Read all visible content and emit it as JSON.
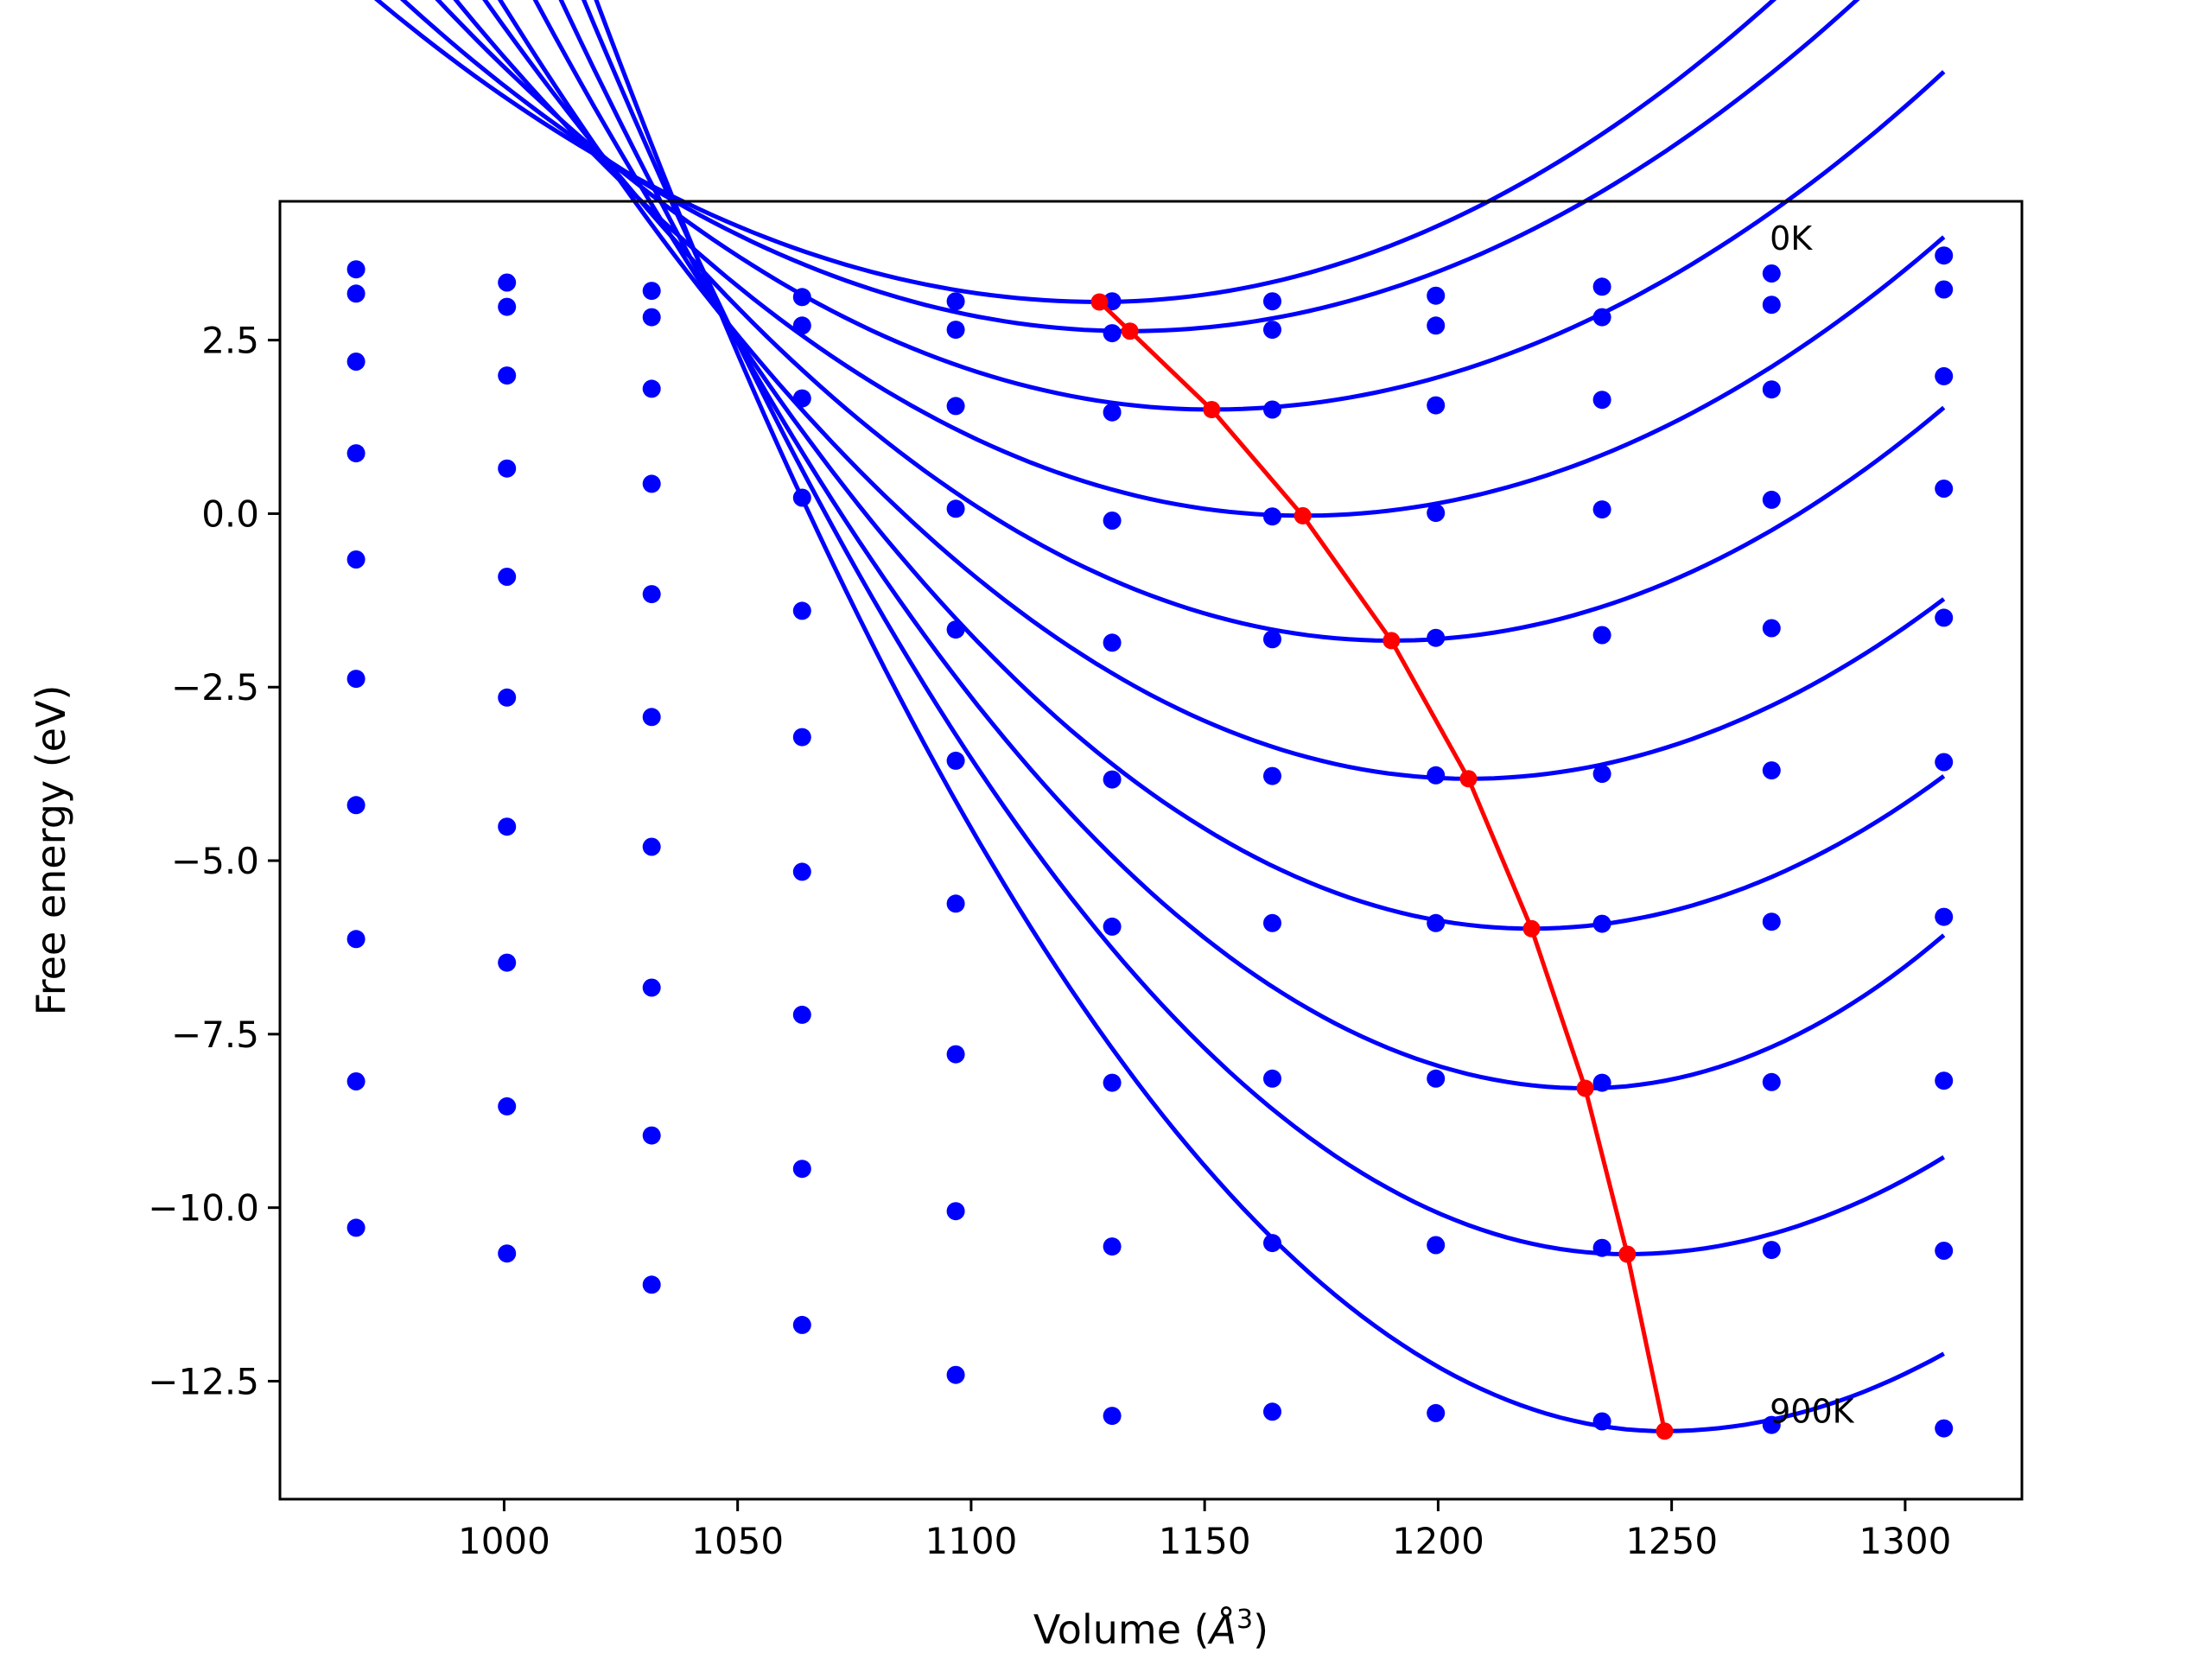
{
  "chart_data": {
    "type": "line",
    "xlabel": "Volume (",
    "xlabel_unit": "Å",
    "xlabel_exp": "3",
    "xlabel_close": ")",
    "ylabel": "Free energy (eV)",
    "xlim": [
      952,
      1325
    ],
    "ylim": [
      -14.2,
      4.5
    ],
    "grid": false,
    "xticks": [
      1000,
      1050,
      1100,
      1150,
      1200,
      1250,
      1300
    ],
    "xtick_labels": [
      "1000",
      "1050",
      "1100",
      "1150",
      "1200",
      "1250",
      "1300"
    ],
    "yticks": [
      2.5,
      0.0,
      -2.5,
      -5.0,
      -7.5,
      -10.0,
      -12.5
    ],
    "ytick_labels": [
      "2.5",
      "0.0",
      "−2.5",
      "−5.0",
      "−7.5",
      "−10.0",
      "−12.5"
    ],
    "colors": {
      "points": "#0000ff",
      "fits": "#0000ff",
      "minima": "#ff0000"
    },
    "annotations": [
      {
        "text": "0K",
        "x": 1271,
        "y": 3.8
      },
      {
        "text": "900K",
        "x": 1271,
        "y": -13.1
      }
    ],
    "x": [
      968.3,
      1000.6,
      1031.6,
      1063.8,
      1096.7,
      1130.2,
      1164.5,
      1199.5,
      1235.1,
      1271.4,
      1308.3
    ],
    "series": [
      {
        "points": [
          3.52,
          3.33,
          3.21,
          3.12,
          3.06,
          3.06,
          3.06,
          3.14,
          3.27,
          3.46,
          3.72
        ],
        "fit": {
          "v0": 1127.5,
          "e0": 3.05,
          "a_left": 1.82e-05,
          "a_right": 2.09e-05
        }
      },
      {
        "points": [
          3.17,
          2.98,
          2.83,
          2.71,
          2.65,
          2.6,
          2.65,
          2.71,
          2.83,
          3.01,
          3.23
        ],
        "fit": {
          "v0": 1134.0,
          "e0": 2.63,
          "a_left": 1.97e-05,
          "a_right": 1.97e-05
        }
      },
      {
        "points": [
          2.19,
          1.99,
          1.8,
          1.66,
          1.55,
          1.46,
          1.5,
          1.56,
          1.64,
          1.79,
          1.98
        ],
        "fit": {
          "v0": 1151.5,
          "e0": 1.5,
          "a_left": 2.15e-05,
          "a_right": 1.98e-05
        }
      },
      {
        "points": [
          0.87,
          0.65,
          0.43,
          0.23,
          0.07,
          -0.1,
          -0.04,
          0.01,
          0.06,
          0.2,
          0.36
        ],
        "fit": {
          "v0": 1171.0,
          "e0": -0.03,
          "a_left": 2.26e-05,
          "a_right": 2.13e-05
        }
      },
      {
        "points": [
          -0.66,
          -0.91,
          -1.16,
          -1.4,
          -1.67,
          -1.86,
          -1.81,
          -1.79,
          -1.75,
          -1.65,
          -1.5
        ],
        "fit": {
          "v0": 1190.0,
          "e0": -1.83,
          "a_left": 2.45e-05,
          "a_right": 2.4e-05
        }
      },
      {
        "points": [
          -2.38,
          -2.65,
          -2.93,
          -3.22,
          -3.56,
          -3.83,
          -3.78,
          -3.77,
          -3.75,
          -3.7,
          -3.58
        ],
        "fit": {
          "v0": 1206.5,
          "e0": -3.82,
          "a_left": 2.61e-05,
          "a_right": 2.5e-05
        }
      },
      {
        "points": [
          -4.2,
          -4.51,
          -4.8,
          -5.16,
          -5.62,
          -5.95,
          -5.9,
          -5.9,
          -5.91,
          -5.88,
          -5.81
        ],
        "fit": {
          "v0": 1220.0,
          "e0": -5.98,
          "a_left": 2.94e-05,
          "a_right": 2.82e-05
        }
      },
      {
        "points": [
          -6.13,
          -6.47,
          -6.83,
          -7.22,
          -7.79,
          -8.2,
          -8.14,
          -8.14,
          -8.2,
          -8.19,
          -8.17
        ],
        "fit": {
          "v0": 1231.5,
          "e0": -8.28,
          "a_left": 3.26e-05,
          "a_right": 3.74e-05
        }
      },
      {
        "points": [
          -8.18,
          -8.54,
          -8.96,
          -9.44,
          -10.05,
          -10.56,
          -10.51,
          -10.54,
          -10.58,
          -10.61,
          -10.62
        ],
        "fit": {
          "v0": 1240.5,
          "e0": -10.67,
          "a_left": 3.62e-05,
          "a_right": 3.04e-05
        }
      },
      {
        "points": [
          -10.29,
          -10.66,
          -11.11,
          -11.69,
          -12.41,
          -13.0,
          -12.94,
          -12.96,
          -13.08,
          -13.13,
          -13.18
        ],
        "fit": {
          "v0": 1248.5,
          "e0": -13.22,
          "a_left": 3.94e-05,
          "a_right": 3.12e-05
        }
      }
    ],
    "minima": {
      "x": [
        1127.5,
        1134.0,
        1151.5,
        1171.0,
        1190.0,
        1206.5,
        1220.0,
        1231.5,
        1240.5,
        1248.5
      ],
      "y": [
        3.05,
        2.63,
        1.5,
        -0.03,
        -1.83,
        -3.82,
        -5.98,
        -8.28,
        -10.67,
        -13.22
      ]
    }
  }
}
